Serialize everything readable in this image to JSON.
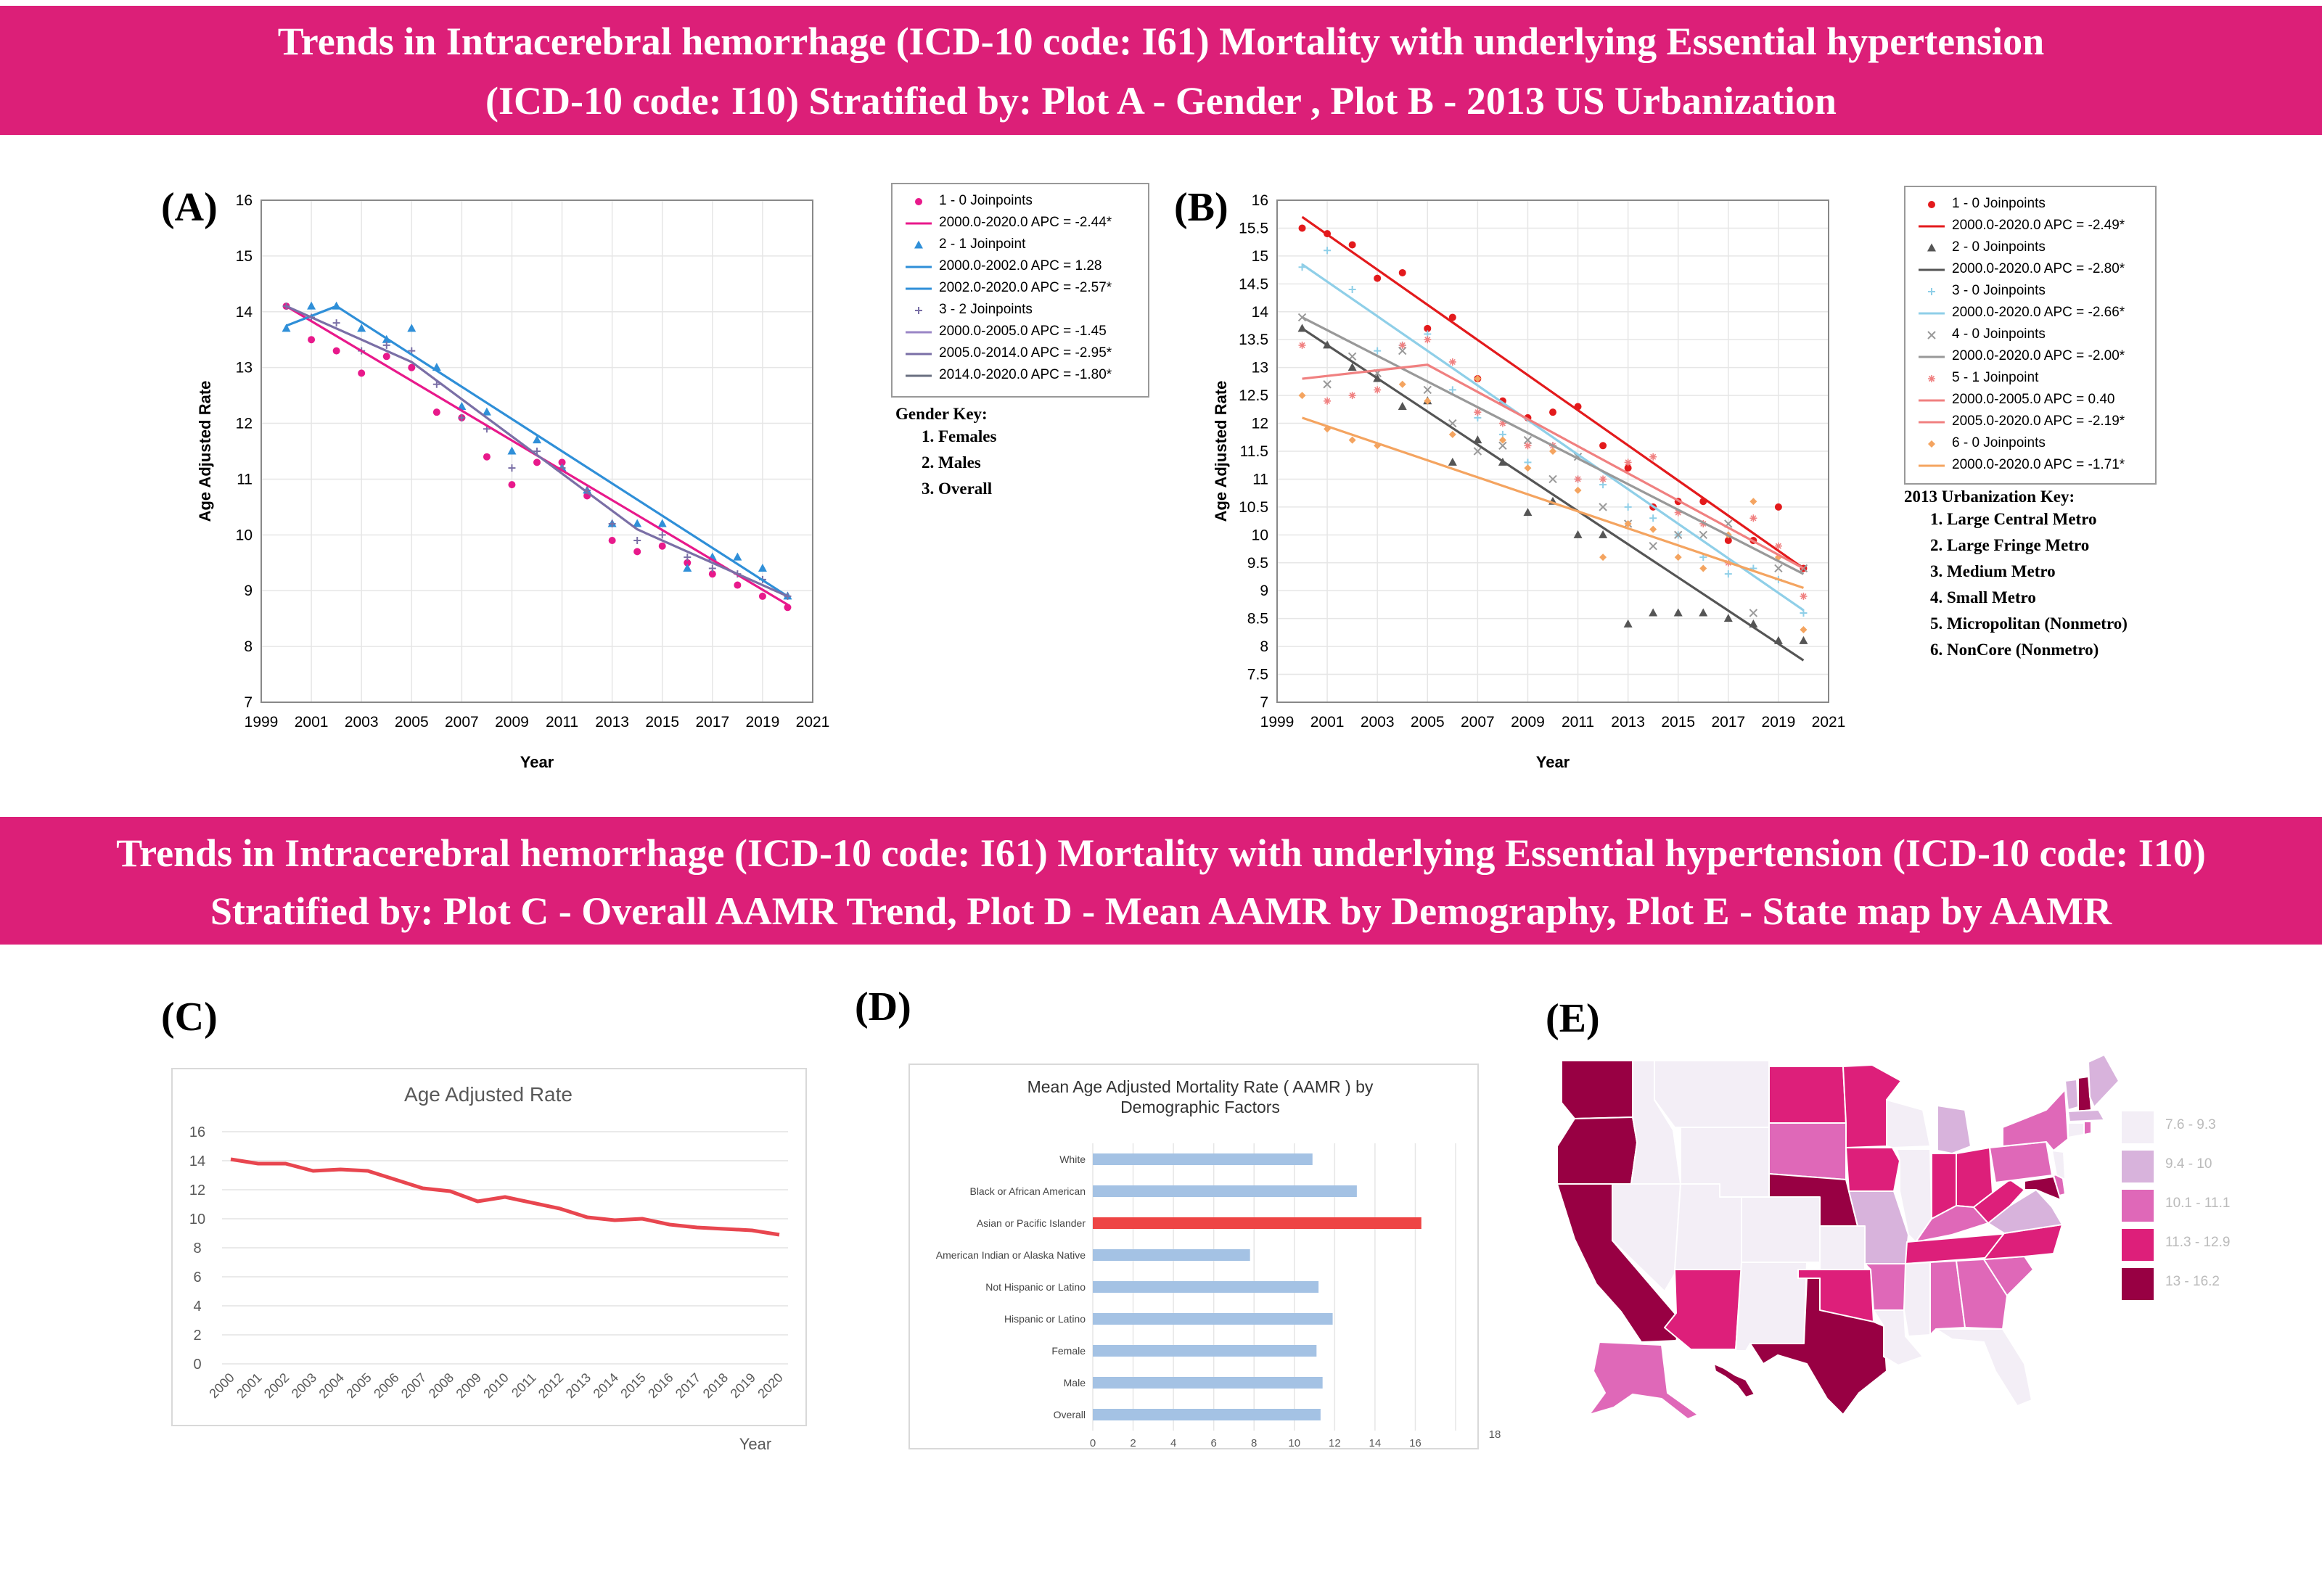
{
  "banners": {
    "top": {
      "line1": "Trends in Intracerebral hemorrhage (ICD-10 code: I61) Mortality with underlying Essential hypertension",
      "line2": "(ICD-10 code: I10) Stratified by: Plot A - Gender , Plot B - 2013 US Urbanization"
    },
    "bottom": {
      "line1": "Trends in Intracerebral hemorrhage (ICD-10 code: I61) Mortality with underlying Essential hypertension (ICD-10 code: I10)",
      "line2": "Stratified by: Plot C  - Overall AAMR Trend, Plot D - Mean AAMR by Demography, Plot E - State map by AAMR"
    },
    "color": "#dc1f78"
  },
  "chart_data": [
    {
      "id": "A",
      "label": "(A)",
      "type": "scatter",
      "xlabel": "Year",
      "ylabel": "Age Adjusted Rate",
      "xlim": [
        1999,
        2021
      ],
      "ylim": [
        7,
        16
      ],
      "xticks": [
        1999,
        2001,
        2003,
        2005,
        2007,
        2009,
        2011,
        2013,
        2015,
        2017,
        2019,
        2021
      ],
      "yticks": [
        7,
        8,
        9,
        10,
        11,
        12,
        13,
        14,
        15,
        16
      ],
      "legend": [
        {
          "kind": "marker",
          "color": "#e8198b",
          "marker": "circle",
          "text": "1 - 0 Joinpoints"
        },
        {
          "kind": "line",
          "color": "#e8198b",
          "text": "2000.0-2020.0 APC  =  -2.44*"
        },
        {
          "kind": "marker",
          "color": "#2f8fd8",
          "marker": "triangle",
          "text": "2 - 1 Joinpoint"
        },
        {
          "kind": "line",
          "color": "#2f8fd8",
          "text": "2000.0-2002.0 APC  =  1.28"
        },
        {
          "kind": "line",
          "color": "#2f8fd8",
          "text": "2002.0-2020.0 APC  =  -2.57*"
        },
        {
          "kind": "marker",
          "color": "#7a6fa6",
          "marker": "plus",
          "text": "3 - 2 Joinpoints"
        },
        {
          "kind": "line",
          "color": "#9a86c6",
          "text": "2000.0-2005.0 APC  =  -1.45"
        },
        {
          "kind": "line",
          "color": "#7a6fa6",
          "text": "2005.0-2014.0 APC  =  -2.95*"
        },
        {
          "kind": "line",
          "color": "#6a6f80",
          "text": "2014.0-2020.0 APC  =  -1.80*"
        }
      ],
      "key": {
        "title": "Gender Key:",
        "items": [
          "Females",
          "Males",
          "Overall"
        ]
      },
      "series": [
        {
          "name": "Females",
          "color": "#e8198b",
          "marker": "circle",
          "x": [
            2000,
            2001,
            2002,
            2003,
            2004,
            2005,
            2006,
            2007,
            2008,
            2009,
            2010,
            2011,
            2012,
            2013,
            2014,
            2015,
            2016,
            2017,
            2018,
            2019,
            2020
          ],
          "y": [
            14.1,
            13.5,
            13.3,
            12.9,
            13.2,
            13.0,
            12.2,
            12.1,
            11.4,
            10.9,
            11.3,
            11.3,
            10.7,
            9.9,
            9.7,
            9.8,
            9.5,
            9.3,
            9.1,
            8.9,
            8.7
          ],
          "fit": {
            "x": [
              2000,
              2020
            ],
            "y": [
              14.1,
              8.75
            ]
          }
        },
        {
          "name": "Males",
          "color": "#2f8fd8",
          "marker": "triangle",
          "x": [
            2000,
            2001,
            2002,
            2003,
            2004,
            2005,
            2006,
            2007,
            2008,
            2009,
            2010,
            2011,
            2012,
            2013,
            2014,
            2015,
            2016,
            2017,
            2018,
            2019,
            2020
          ],
          "y": [
            13.7,
            14.1,
            14.1,
            13.7,
            13.5,
            13.7,
            13.0,
            12.3,
            12.2,
            11.5,
            11.7,
            11.2,
            10.8,
            10.2,
            10.2,
            10.2,
            9.4,
            9.6,
            9.6,
            9.4,
            8.9
          ],
          "fit": {
            "x": [
              2000,
              2002,
              2020
            ],
            "y": [
              13.75,
              14.1,
              8.9
            ]
          }
        },
        {
          "name": "Overall",
          "color": "#7a6fa6",
          "marker": "plus",
          "x": [
            2000,
            2001,
            2002,
            2003,
            2004,
            2005,
            2006,
            2007,
            2008,
            2009,
            2010,
            2011,
            2012,
            2013,
            2014,
            2015,
            2016,
            2017,
            2018,
            2019,
            2020
          ],
          "y": [
            14.1,
            13.9,
            13.8,
            13.3,
            13.4,
            13.3,
            12.7,
            12.1,
            11.9,
            11.2,
            11.5,
            11.2,
            10.8,
            10.2,
            9.9,
            10.0,
            9.6,
            9.4,
            9.3,
            9.2,
            8.9
          ],
          "fit": {
            "x": [
              2000,
              2005,
              2014,
              2020
            ],
            "y": [
              14.1,
              13.1,
              10.1,
              8.9
            ]
          }
        }
      ]
    },
    {
      "id": "B",
      "label": "(B)",
      "type": "scatter",
      "xlabel": "Year",
      "ylabel": "Age Adjusted Rate",
      "xlim": [
        1999,
        2021
      ],
      "ylim": [
        7,
        16
      ],
      "xticks": [
        1999,
        2001,
        2003,
        2005,
        2007,
        2009,
        2011,
        2013,
        2015,
        2017,
        2019,
        2021
      ],
      "yticks": [
        7,
        7.5,
        8,
        8.5,
        9,
        9.5,
        10,
        10.5,
        11,
        11.5,
        12,
        12.5,
        13,
        13.5,
        14,
        14.5,
        15,
        15.5,
        16
      ],
      "legend": [
        {
          "kind": "marker",
          "color": "#e31a1c",
          "marker": "circle",
          "text": "1 - 0 Joinpoints"
        },
        {
          "kind": "line",
          "color": "#e31a1c",
          "text": "2000.0-2020.0 APC  =  -2.49*"
        },
        {
          "kind": "marker",
          "color": "#555555",
          "marker": "triangle",
          "text": "2 - 0 Joinpoints"
        },
        {
          "kind": "line",
          "color": "#555555",
          "text": "2000.0-2020.0 APC  =  -2.80*"
        },
        {
          "kind": "marker",
          "color": "#8fcfe8",
          "marker": "plus",
          "text": "3 - 0 Joinpoints"
        },
        {
          "kind": "line",
          "color": "#8fcfe8",
          "text": "2000.0-2020.0 APC  =  -2.66*"
        },
        {
          "kind": "marker",
          "color": "#999999",
          "marker": "x",
          "text": "4 - 0 Joinpoints"
        },
        {
          "kind": "line",
          "color": "#999999",
          "text": "2000.0-2020.0 APC  =  -2.00*"
        },
        {
          "kind": "marker",
          "color": "#f08080",
          "marker": "star",
          "text": "5 - 1 Joinpoint"
        },
        {
          "kind": "line",
          "color": "#f08080",
          "text": "2000.0-2005.0 APC  =  0.40"
        },
        {
          "kind": "line",
          "color": "#f08080",
          "text": "2005.0-2020.0 APC  =  -2.19*"
        },
        {
          "kind": "marker",
          "color": "#f4a460",
          "marker": "diamond",
          "text": "6 - 0 Joinpoints"
        },
        {
          "kind": "line",
          "color": "#f4a460",
          "text": "2000.0-2020.0 APC  =  -1.71*"
        }
      ],
      "key": {
        "title": "2013 Urbanization Key:",
        "items": [
          "Large Central Metro",
          "Large Fringe Metro",
          "Medium Metro",
          "Small Metro",
          "Micropolitan (Nonmetro)",
          "NonCore (Nonmetro)"
        ]
      },
      "series": [
        {
          "name": "Large Central Metro",
          "color": "#e31a1c",
          "marker": "circle",
          "x": [
            2000,
            2001,
            2002,
            2003,
            2004,
            2005,
            2006,
            2007,
            2008,
            2009,
            2010,
            2011,
            2012,
            2013,
            2014,
            2015,
            2016,
            2017,
            2018,
            2019,
            2020
          ],
          "y": [
            15.5,
            15.4,
            15.2,
            14.6,
            14.7,
            13.7,
            13.9,
            12.8,
            12.4,
            12.1,
            12.2,
            12.3,
            11.6,
            11.2,
            10.5,
            10.6,
            10.6,
            9.9,
            9.9,
            10.5,
            9.4
          ],
          "fit": {
            "x": [
              2000,
              2020
            ],
            "y": [
              15.7,
              9.4
            ]
          }
        },
        {
          "name": "Large Fringe Metro",
          "color": "#555555",
          "marker": "triangle",
          "x": [
            2000,
            2001,
            2002,
            2003,
            2004,
            2005,
            2006,
            2007,
            2008,
            2009,
            2010,
            2011,
            2012,
            2013,
            2014,
            2015,
            2016,
            2017,
            2018,
            2019,
            2020
          ],
          "y": [
            13.7,
            13.4,
            13.0,
            12.8,
            12.3,
            12.4,
            11.3,
            11.7,
            11.3,
            10.4,
            10.6,
            10.0,
            10.0,
            8.4,
            8.6,
            8.6,
            8.6,
            8.5,
            8.4,
            8.1,
            8.1
          ],
          "fit": {
            "x": [
              2000,
              2020
            ],
            "y": [
              13.7,
              7.75
            ]
          }
        },
        {
          "name": "Medium Metro",
          "color": "#8fcfe8",
          "marker": "plus",
          "x": [
            2000,
            2001,
            2002,
            2003,
            2004,
            2005,
            2006,
            2007,
            2008,
            2009,
            2010,
            2011,
            2012,
            2013,
            2014,
            2015,
            2016,
            2017,
            2018,
            2019,
            2020
          ],
          "y": [
            14.8,
            15.1,
            14.4,
            13.3,
            13.4,
            13.6,
            12.6,
            12.1,
            11.8,
            11.3,
            11.6,
            11.0,
            10.9,
            10.5,
            10.3,
            10.0,
            9.6,
            9.3,
            9.4,
            9.2,
            8.6
          ],
          "fit": {
            "x": [
              2000,
              2020
            ],
            "y": [
              14.85,
              8.65
            ]
          }
        },
        {
          "name": "Small Metro",
          "color": "#999999",
          "marker": "x",
          "x": [
            2000,
            2001,
            2002,
            2003,
            2004,
            2005,
            2006,
            2007,
            2008,
            2009,
            2010,
            2011,
            2012,
            2013,
            2014,
            2015,
            2016,
            2017,
            2018,
            2019,
            2020
          ],
          "y": [
            13.9,
            12.7,
            13.2,
            12.9,
            13.3,
            12.6,
            12.0,
            11.5,
            11.6,
            11.7,
            11.0,
            11.4,
            10.5,
            10.2,
            9.8,
            10.0,
            10.0,
            10.2,
            8.6,
            9.4,
            9.4
          ],
          "fit": {
            "x": [
              2000,
              2020
            ],
            "y": [
              13.9,
              9.3
            ]
          }
        },
        {
          "name": "Micropolitan (Nonmetro)",
          "color": "#f08080",
          "marker": "star",
          "x": [
            2000,
            2001,
            2002,
            2003,
            2004,
            2005,
            2006,
            2007,
            2008,
            2009,
            2010,
            2011,
            2012,
            2013,
            2014,
            2015,
            2016,
            2017,
            2018,
            2019,
            2020
          ],
          "y": [
            13.4,
            12.4,
            12.5,
            12.6,
            13.4,
            13.5,
            13.1,
            12.2,
            12.0,
            11.6,
            11.6,
            11.0,
            11.0,
            11.3,
            11.4,
            10.4,
            10.2,
            9.5,
            10.3,
            9.8,
            8.9
          ],
          "fit": {
            "x": [
              2000,
              2005,
              2020
            ],
            "y": [
              12.8,
              13.05,
              9.4
            ]
          }
        },
        {
          "name": "NonCore (Nonmetro)",
          "color": "#f4a460",
          "marker": "diamond",
          "x": [
            2000,
            2001,
            2002,
            2003,
            2004,
            2005,
            2006,
            2007,
            2008,
            2009,
            2010,
            2011,
            2012,
            2013,
            2014,
            2015,
            2016,
            2017,
            2018,
            2019,
            2020
          ],
          "y": [
            12.5,
            11.9,
            11.7,
            11.6,
            12.7,
            12.4,
            11.8,
            12.8,
            11.7,
            11.2,
            11.5,
            10.8,
            9.6,
            10.2,
            10.1,
            9.6,
            9.4,
            10.0,
            10.6,
            9.6,
            8.3
          ],
          "fit": {
            "x": [
              2000,
              2020
            ],
            "y": [
              12.1,
              9.05
            ]
          }
        }
      ]
    },
    {
      "id": "C",
      "label": "(C)",
      "type": "line",
      "title": "Age Adjusted Rate",
      "xlabel": "Year",
      "ylim": [
        0,
        16
      ],
      "yticks": [
        0,
        2,
        4,
        6,
        8,
        10,
        12,
        14,
        16
      ],
      "categories": [
        "2000",
        "2001",
        "2002",
        "2003",
        "2004",
        "2005",
        "2006",
        "2007",
        "2008",
        "2009",
        "2010",
        "2011",
        "2012",
        "2013",
        "2014",
        "2015",
        "2016",
        "2017",
        "2018",
        "2019",
        "2020"
      ],
      "series": [
        {
          "name": "Age Adjusted Rate",
          "color": "#e8464f",
          "values": [
            14.1,
            13.8,
            13.8,
            13.3,
            13.4,
            13.3,
            12.7,
            12.1,
            11.9,
            11.2,
            11.5,
            11.1,
            10.7,
            10.1,
            9.9,
            10.0,
            9.6,
            9.4,
            9.3,
            9.2,
            8.9
          ]
        }
      ]
    },
    {
      "id": "D",
      "label": "(D)",
      "type": "bar",
      "orientation": "horizontal",
      "title_line1": "Mean Age Adjusted Mortality Rate ( AAMR ) by",
      "title_line2": "Demographic Factors",
      "xlim": [
        0,
        18
      ],
      "xticks": [
        0,
        2,
        4,
        6,
        8,
        10,
        12,
        14,
        16
      ],
      "xticks_extra": "18",
      "categories": [
        "White",
        "Black or African American",
        "Asian or Pacific Islander",
        "American Indian or Alaska Native",
        "Not Hispanic or Latino",
        "Hispanic or Latino",
        "Female",
        "Male",
        "Overall"
      ],
      "values": [
        10.9,
        13.1,
        16.3,
        7.8,
        11.2,
        11.9,
        11.1,
        11.4,
        11.3
      ],
      "colors": {
        "default": "#a4c2e4",
        "highlight": "#ee4444"
      },
      "highlight": "Asian or Pacific Islander"
    }
  ],
  "map": {
    "label": "(E)",
    "legend": [
      {
        "text": "7.6 - 9.3",
        "color": "#f3eef6"
      },
      {
        "text": "9.4 - 10",
        "color": "#d8b3dc"
      },
      {
        "text": "10.1 - 11.1",
        "color": "#df68b8"
      },
      {
        "text": "11.3 - 12.9",
        "color": "#dd1f7a"
      },
      {
        "text": "13 - 16.2",
        "color": "#980043"
      }
    ]
  }
}
